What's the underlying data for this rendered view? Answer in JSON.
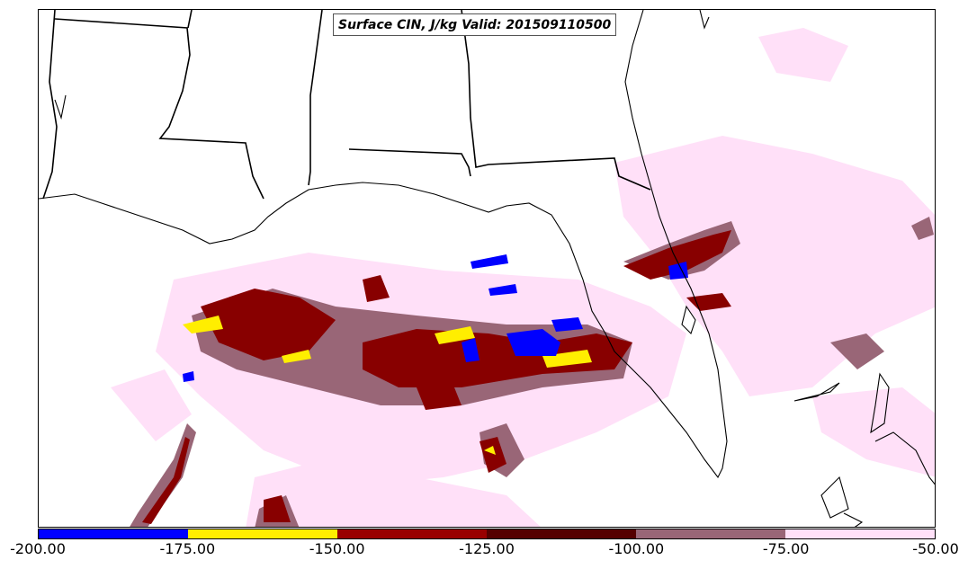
{
  "title": "Surface CIN, J/kg Valid: 201509110500",
  "colorbar": {
    "ticks": [
      "-200.00",
      "-175.00",
      "-150.00",
      "-125.00",
      "-100.00",
      "-75.00",
      "-50.00"
    ],
    "bins": [
      {
        "from": -200,
        "to": -175,
        "color": "#0000ff"
      },
      {
        "from": -175,
        "to": -150,
        "color": "#ffee00"
      },
      {
        "from": -150,
        "to": -125,
        "color": "#990000"
      },
      {
        "from": -125,
        "to": -100,
        "color": "#550000"
      },
      {
        "from": -100,
        "to": -75,
        "color": "#996677"
      },
      {
        "from": -75,
        "to": -50,
        "color": "#ffe0f8"
      }
    ]
  },
  "icons": {
    "map": "map-icon",
    "colorbar": "colorbar-icon"
  }
}
